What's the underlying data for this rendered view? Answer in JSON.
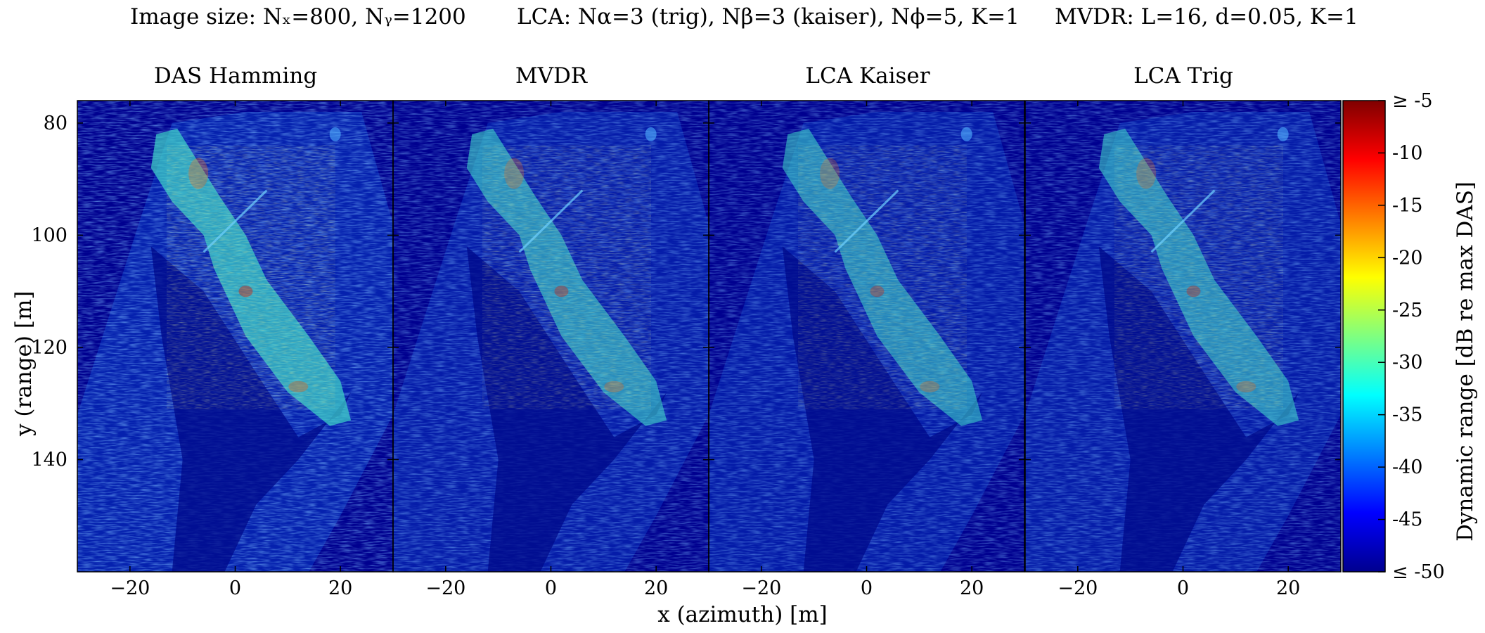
{
  "header": {
    "image_size": "Image size: Nₓ=800, Nᵧ=1200",
    "lca": "LCA: Nα=3 (trig), Nβ=3 (kaiser), Nϕ=5, K=1",
    "mvdr": "MVDR: L=16, d=0.05, K=1"
  },
  "chart_data": {
    "type": "heatmap",
    "panels": [
      {
        "title": "DAS Hamming",
        "intensity": 1.0
      },
      {
        "title": "MVDR",
        "intensity": 0.85
      },
      {
        "title": "LCA Kaiser",
        "intensity": 0.8
      },
      {
        "title": "LCA Trig",
        "intensity": 0.82
      }
    ],
    "xlabel": "x (azimuth) [m]",
    "ylabel": "y (range) [m]",
    "xlim": [
      -30,
      30
    ],
    "ylim": [
      160,
      76
    ],
    "xticks": [
      -20,
      0,
      20
    ],
    "xtick_labels": [
      "−20",
      "0",
      "20"
    ],
    "yticks": [
      80,
      100,
      120,
      140
    ],
    "yticks_labels": [
      "80",
      "100",
      "120",
      "140"
    ],
    "colorbar": {
      "label": "Dynamic range [dB re max DAS]",
      "range": [
        -50,
        -5
      ],
      "ticks": [
        -5,
        -10,
        -15,
        -20,
        -25,
        -30,
        -35,
        -40,
        -45,
        -50
      ],
      "tick_labels": [
        "≥ -5",
        "-10",
        "-15",
        "-20",
        "-25",
        "-30",
        "-35",
        "-40",
        "-45",
        "≤ -50"
      ]
    },
    "colormap": "jet",
    "grid": false
  }
}
